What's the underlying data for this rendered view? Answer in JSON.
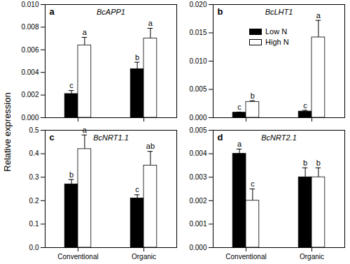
{
  "y_label": "Relative expression",
  "chart_data": [
    {
      "type": "bar",
      "label": "a",
      "title": "BcAPP1",
      "categories": [
        "Conventional",
        "Organic"
      ],
      "series": [
        {
          "name": "Low N",
          "color": "#000000",
          "values": [
            0.0021,
            0.0043
          ],
          "errors": [
            0.0003,
            0.0006
          ],
          "letters": [
            "c",
            "b"
          ]
        },
        {
          "name": "High N",
          "color": "#ffffff",
          "values": [
            0.0064,
            0.007
          ],
          "errors": [
            0.0007,
            0.0009
          ],
          "letters": [
            "a",
            "a"
          ]
        }
      ],
      "ylim": [
        0,
        0.01
      ],
      "yticks": [
        {
          "value": 0,
          "label": "0.000"
        },
        {
          "value": 0.002,
          "label": "0.002"
        },
        {
          "value": 0.004,
          "label": "0.004"
        },
        {
          "value": 0.006,
          "label": "0.006"
        },
        {
          "value": 0.008,
          "label": "0.008"
        },
        {
          "value": 0.01,
          "label": "0.010"
        }
      ],
      "tick_labels": "y"
    },
    {
      "type": "bar",
      "label": "b",
      "title": "BcLHT1",
      "categories": [
        "Conventional",
        "Organic"
      ],
      "series": [
        {
          "name": "Low N",
          "color": "#000000",
          "values": [
            0.0009,
            0.0011
          ],
          "errors": [
            0.0001,
            0.0002
          ],
          "letters": [
            "c",
            "c"
          ]
        },
        {
          "name": "High N",
          "color": "#ffffff",
          "values": [
            0.0028,
            0.0142
          ],
          "errors": [
            0.0002,
            0.003
          ],
          "letters": [
            "b",
            "a"
          ]
        }
      ],
      "ylim": [
        0,
        0.02
      ],
      "yticks": [
        {
          "value": 0,
          "label": "0.000"
        },
        {
          "value": 0.005,
          "label": "0.005"
        },
        {
          "value": 0.01,
          "label": "0.010"
        },
        {
          "value": 0.015,
          "label": "0.015"
        },
        {
          "value": 0.02,
          "label": "0.020"
        }
      ],
      "tick_labels": "y",
      "legend": "top"
    },
    {
      "type": "bar",
      "label": "c",
      "title": "BcNRT1.1",
      "categories": [
        "Conventional",
        "Organic"
      ],
      "series": [
        {
          "name": "Low N",
          "color": "#000000",
          "values": [
            0.27,
            0.21
          ],
          "errors": [
            0.02,
            0.015
          ],
          "letters": [
            "b",
            "c"
          ]
        },
        {
          "name": "High N",
          "color": "#ffffff",
          "values": [
            0.42,
            0.35
          ],
          "errors": [
            0.06,
            0.06
          ],
          "letters": [
            "a",
            "ab"
          ]
        }
      ],
      "ylim": [
        0,
        0.5
      ],
      "yticks": [
        {
          "value": 0,
          "label": "0.0"
        },
        0.1,
        0.2,
        0.3,
        0.4,
        0.5
      ]
    },
    {
      "type": "bar",
      "label": "d",
      "title": "BcNRT2.1",
      "categories": [
        "Conventional",
        "Organic"
      ],
      "series": [
        {
          "name": "Low N",
          "color": "#000000",
          "values": [
            0.004,
            0.003
          ],
          "errors": [
            0.0002,
            0.0004
          ],
          "letters": [
            "a",
            "b"
          ]
        },
        {
          "name": "High N",
          "color": "#ffffff",
          "values": [
            0.002,
            0.003
          ],
          "errors": [
            0.0005,
            0.0004
          ],
          "letters": [
            "c",
            "b"
          ]
        }
      ],
      "ylim": [
        0,
        0.005
      ],
      "yticks": [
        {
          "value": 0,
          "label": "0.000"
        },
        {
          "value": 0.001,
          "label": "0.001"
        },
        {
          "value": 0.002,
          "label": "0.002"
        },
        {
          "value": 0.003,
          "label": "0.003"
        },
        {
          "value": 0.004,
          "label": "0.004"
        },
        {
          "value": 0.005,
          "label": "0.005"
        }
      ]
    }
  ]
}
